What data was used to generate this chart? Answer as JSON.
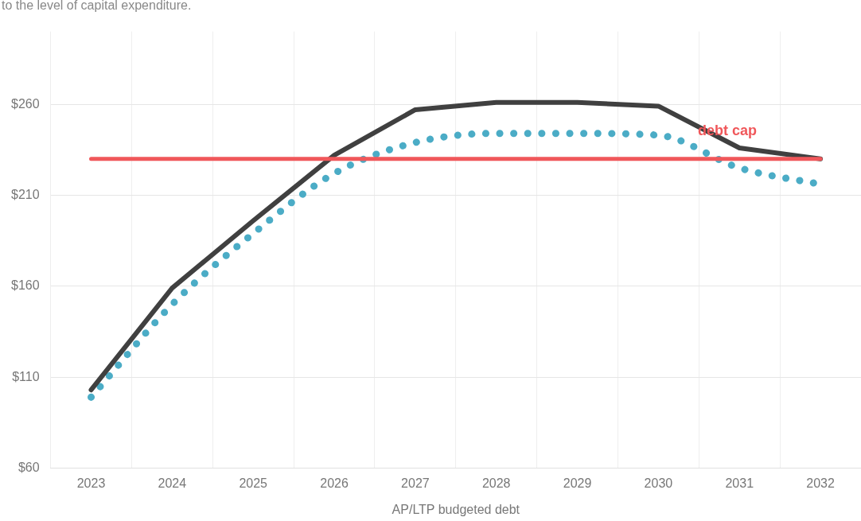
{
  "chart_data": {
    "type": "line",
    "subtitle": "to the level of capital expenditure.",
    "xlabel": "AP/LTP budgeted debt",
    "categories": [
      "2023",
      "2024",
      "2025",
      "2026",
      "2027",
      "2028",
      "2029",
      "2030",
      "2031",
      "2032"
    ],
    "series": [
      {
        "color": "#404040",
        "line_style": "solid",
        "values": [
          103,
          159,
          196,
          232,
          257,
          261,
          261,
          259,
          236,
          230
        ]
      },
      {
        "color": "#4bacc6",
        "line_style": "dotted",
        "values": [
          99,
          150,
          189,
          222,
          239,
          244,
          244,
          243,
          225,
          216
        ]
      }
    ],
    "ylim": [
      60,
      300
    ],
    "yticks": [
      {
        "value": 60,
        "label": "$60"
      },
      {
        "value": 110,
        "label": "$110"
      },
      {
        "value": 160,
        "label": "$160"
      },
      {
        "value": 210,
        "label": "$210"
      },
      {
        "value": 260,
        "label": "$260"
      }
    ],
    "grid": true,
    "legend": false,
    "marker": "none",
    "ref_lines": [
      {
        "axis": "y",
        "value": 230,
        "label": "debt cap",
        "color": "#f0575a"
      }
    ]
  }
}
